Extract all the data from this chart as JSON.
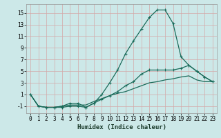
{
  "title": "",
  "xlabel": "Humidex (Indice chaleur)",
  "bg_color": "#cce8e8",
  "grid_color": "#d4a8a8",
  "line_color": "#1a6b5a",
  "xlim": [
    -0.5,
    23.5
  ],
  "ylim": [
    -2.2,
    16.5
  ],
  "xticks": [
    0,
    1,
    2,
    3,
    4,
    5,
    6,
    7,
    8,
    9,
    10,
    11,
    12,
    13,
    14,
    15,
    16,
    17,
    18,
    19,
    20,
    21,
    22,
    23
  ],
  "yticks": [
    -1,
    1,
    3,
    5,
    7,
    9,
    11,
    13,
    15
  ],
  "line1_x": [
    0,
    1,
    2,
    3,
    4,
    5,
    6,
    7,
    8,
    9,
    10,
    11,
    12,
    13,
    14,
    15,
    16,
    17,
    18,
    19,
    20,
    21,
    22,
    23
  ],
  "line1_y": [
    1,
    -1,
    -1.2,
    -1.2,
    -1.2,
    -1,
    -1,
    -1.2,
    -0.5,
    1,
    3,
    5.2,
    8,
    10.2,
    12.2,
    14.2,
    15.5,
    15.5,
    13.2,
    7.5,
    6,
    5,
    4,
    3.2
  ],
  "line2_x": [
    0,
    1,
    2,
    3,
    4,
    5,
    6,
    7,
    8,
    9,
    10,
    11,
    12,
    13,
    14,
    15,
    16,
    17,
    18,
    19,
    20,
    21,
    22,
    23
  ],
  "line2_y": [
    1,
    -1,
    -1.2,
    -1.2,
    -1,
    -0.5,
    -0.5,
    -1.2,
    -0.5,
    0.2,
    0.8,
    1.5,
    2.5,
    3.2,
    4.5,
    5.2,
    5.2,
    5.2,
    5.2,
    5.5,
    6,
    5,
    4,
    3.2
  ],
  "line3_x": [
    0,
    1,
    2,
    3,
    4,
    5,
    6,
    7,
    8,
    9,
    10,
    11,
    12,
    13,
    14,
    15,
    16,
    17,
    18,
    19,
    20,
    21,
    22,
    23
  ],
  "line3_y": [
    1,
    -1,
    -1.2,
    -1.2,
    -1,
    -0.8,
    -0.8,
    -0.8,
    -0.2,
    0.3,
    0.8,
    1.2,
    1.5,
    2.0,
    2.5,
    3.0,
    3.2,
    3.5,
    3.7,
    4.0,
    4.2,
    3.5,
    3.2,
    3.2
  ]
}
